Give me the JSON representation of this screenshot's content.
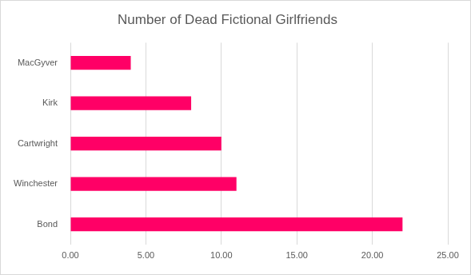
{
  "chart_data": {
    "type": "bar",
    "title": "Number of Dead Fictional Girlfriends",
    "orientation": "horizontal",
    "categories": [
      "MacGyver",
      "Kirk",
      "Cartwright",
      "Winchester",
      "Bond"
    ],
    "values": [
      4,
      8,
      10,
      11,
      22
    ],
    "color": "#ff0066",
    "xlim": [
      0,
      25
    ],
    "xticks": [
      {
        "value": 0,
        "label": "0.00"
      },
      {
        "value": 5,
        "label": "5.00"
      },
      {
        "value": 10,
        "label": "10.00"
      },
      {
        "value": 15,
        "label": "15.00"
      },
      {
        "value": 20,
        "label": "20.00"
      },
      {
        "value": 25,
        "label": "25.00"
      }
    ],
    "grid": true
  }
}
